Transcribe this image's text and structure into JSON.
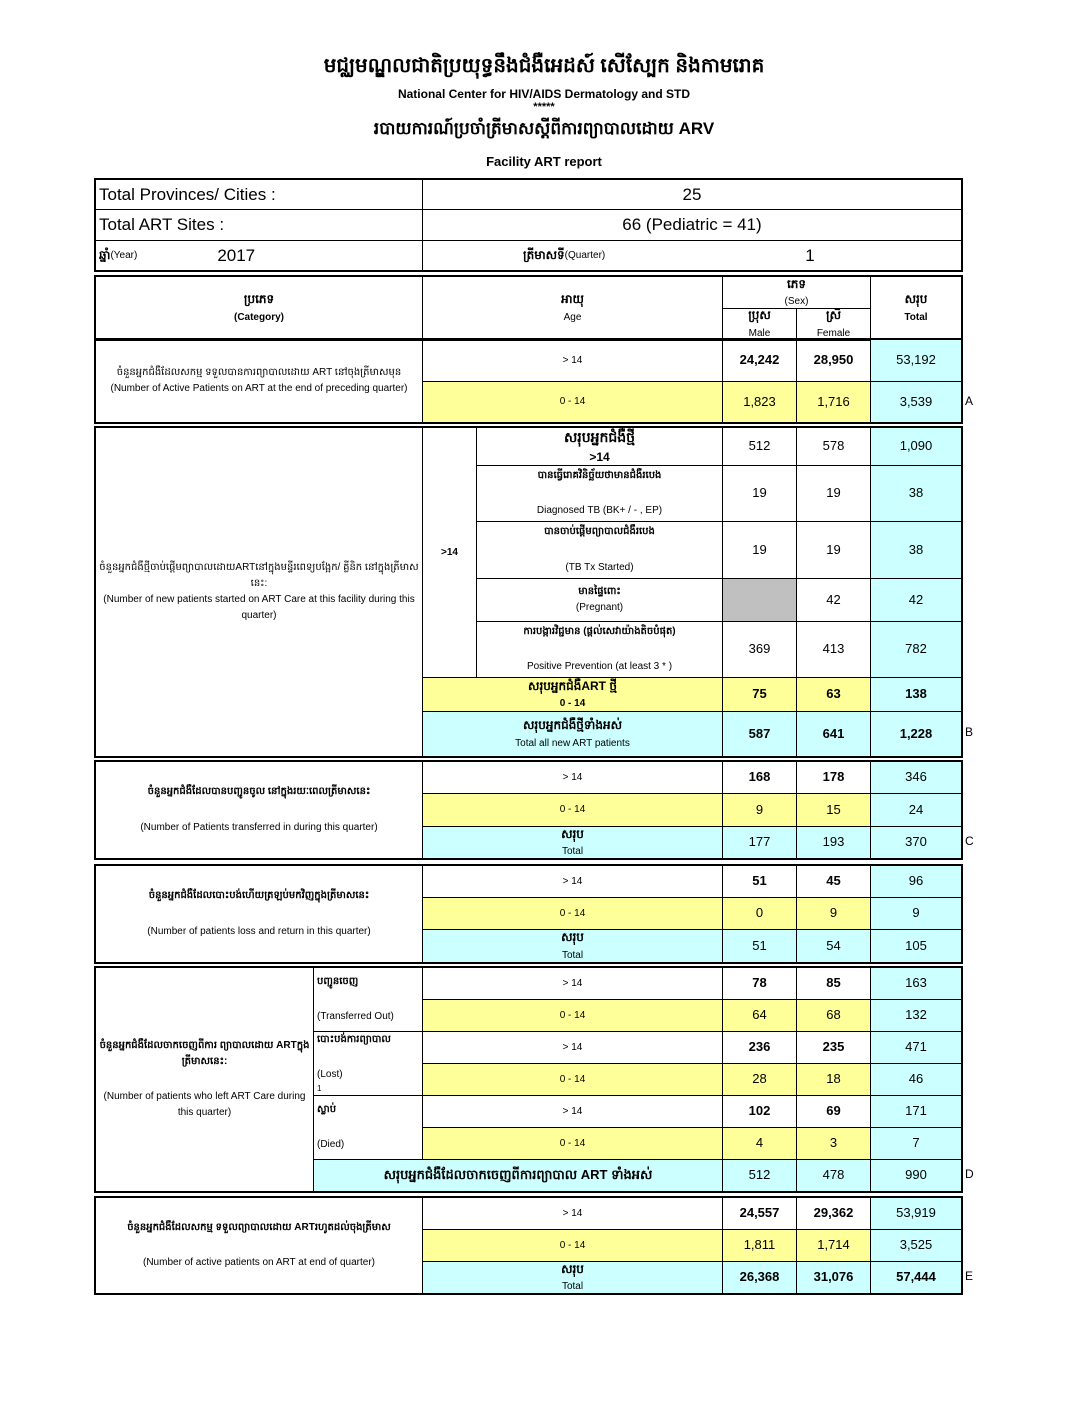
{
  "header": {
    "title_km": "មជ្ឈមណ្ឌលជាតិប្រយុទ្ធនឹងជំងឺអេដស៍ សើស្បែក និងកាមរោគ",
    "title_en": "National Center for HIV/AIDS Dermatology and STD",
    "stars": "*****",
    "subtitle_km": "របាយការណ៍ប្រចាំត្រីមាសស្តីពីការព្យាបាលដោយ ARV",
    "subtitle_en": "Facility ART report"
  },
  "info": {
    "provinces_label": "Total Provinces/ Cities :",
    "provinces_value": "25",
    "sites_label": "Total ART Sites :",
    "sites_value": "66 (Pediatric = 41)",
    "year_label_km": "ឆ្នាំ",
    "year_label_en": "(Year)",
    "year_value": "2017",
    "quarter_label_km": "ត្រីមាសទី",
    "quarter_label_en": "(Quarter)",
    "quarter_value": "1"
  },
  "columns": {
    "category_km": "ប្រភេទ",
    "category_en": "(Category)",
    "age_km": "អាយុ",
    "age_en": "Age",
    "sex_km": "ភេទ",
    "sex_en": "(Sex)",
    "male_km": "ប្រុស",
    "male_en": "Male",
    "female_km": "ស្រី",
    "female_en": "Female",
    "total_km": "សរុប",
    "total_en": "Total"
  },
  "sections": {
    "A": {
      "label_km": "ចំនួនអ្នកជំងឺដែលសកម្ម ទទួលបានការព្យាបាលដោយ ART នៅចុងត្រីមាសមុន",
      "label_en": "(Number of Active Patients on ART at the end of preceding quarter)",
      "letter": "A",
      "rows": [
        {
          "age": "> 14",
          "male": "24,242",
          "female": "28,950",
          "total": "53,192"
        },
        {
          "age": "0 - 14",
          "male": "1,823",
          "female": "1,716",
          "total": "3,539"
        }
      ]
    },
    "B": {
      "label_km": "ចំនួនអ្នកជំងឺថ្មីចាប់ផ្តើមព្យាបាលដោយARTនៅក្នុងមន្ទីរពេទ្យបង្អែក/ គ្លីនិក នៅក្នុងត្រីមាសនេះ:",
      "label_en": "(Number of new patients started on ART Care at this facility during this quarter)",
      "age_group": ">14",
      "letter": "B",
      "rows": [
        {
          "label_km": "សរុបអ្នកជំងឺថ្មី",
          "label_en": ">14",
          "male": "512",
          "female": "578",
          "total": "1,090"
        },
        {
          "label_km": "បានធ្វើរោគវិនិច្ឆ័យថាមានជំងឺរបេង",
          "label_en": "Diagnosed TB (BK+ / - , EP)",
          "male": "19",
          "female": "19",
          "total": "38"
        },
        {
          "label_km": "បានចាប់ផ្តើមព្យាបាលជំងឺរបេង",
          "label_en": "(TB Tx Started)",
          "male": "19",
          "female": "19",
          "total": "38"
        },
        {
          "label_km": "មានផ្ទៃពោះ",
          "label_en": "(Pregnant)",
          "male": "",
          "female": "42",
          "total": "42"
        },
        {
          "label_km": "ការបង្ការវិជ្ជមាន (ផ្តល់សេវាយ៉ាងតិចបំផុត)",
          "label_en": "Positive Prevention (at least 3 * )",
          "male": "369",
          "female": "413",
          "total": "782"
        }
      ],
      "pediatric_total": {
        "label_km": "សរុបអ្នកជំងឺART ថ្មី",
        "label_en": "0 - 14",
        "male": "75",
        "female": "63",
        "total": "138"
      },
      "grand_total": {
        "label_km": "សរុបអ្នកជំងឺថ្មីទាំងអស់",
        "label_en": "Total all new ART patients",
        "male": "587",
        "female": "641",
        "total": "1,228"
      }
    },
    "C": {
      "label_km": "ចំនួនអ្នកជំងឺដែលបានបញ្ជូនចូល នៅក្នុងរយៈពេលត្រីមាសនេះ",
      "label_en": "(Number of Patients transferred in during this quarter)",
      "letter": "C",
      "rows": [
        {
          "age": "> 14",
          "male": "168",
          "female": "178",
          "total": "346"
        },
        {
          "age": "0 - 14",
          "male": "9",
          "female": "15",
          "total": "24"
        },
        {
          "age_km": "សរុប",
          "age": "Total",
          "male": "177",
          "female": "193",
          "total": "370"
        }
      ]
    },
    "D": {
      "label_km": "ចំនួនអ្នកជំងឺដែលបោះបង់ហើយត្រឡប់មកវិញក្នុងត្រីមាសនេះ",
      "label_en": "(Number of patients loss and return in this quarter)",
      "rows": [
        {
          "age": "> 14",
          "male": "51",
          "female": "45",
          "total": "96"
        },
        {
          "age": "0 - 14",
          "male": "0",
          "female": "9",
          "total": "9"
        },
        {
          "age_km": "សរុប",
          "age": "Total",
          "male": "51",
          "female": "54",
          "total": "105"
        }
      ]
    },
    "E": {
      "label_km": "ចំនួនអ្នកជំងឺដែលចាកចេញពីការ ព្យាបាលដោយ ARTក្នុងត្រីមាសនេះ:",
      "label_en": "(Number of patients who left ART Care during this quarter)",
      "letter": "D",
      "groups": [
        {
          "label_km": "បញ្ជូនចេញ",
          "label_en": "(Transferred Out)",
          "note": ""
        },
        {
          "label_km": "បោះបង់ការព្យាបាល",
          "label_en": "(Lost)",
          "note": "1"
        },
        {
          "label_km": "ស្លាប់",
          "label_en": "(Died)",
          "note": ""
        }
      ],
      "rows": [
        {
          "age": "> 14",
          "male": "78",
          "female": "85",
          "total": "163"
        },
        {
          "age": "0 - 14",
          "male": "64",
          "female": "68",
          "total": "132"
        },
        {
          "age": "> 14",
          "male": "236",
          "female": "235",
          "total": "471"
        },
        {
          "age": "0 - 14",
          "male": "28",
          "female": "18",
          "total": "46"
        },
        {
          "age": "> 14",
          "male": "102",
          "female": "69",
          "total": "171"
        },
        {
          "age": "0 - 14",
          "male": "4",
          "female": "3",
          "total": "7"
        }
      ],
      "total": {
        "label_km": "សរុបអ្នកជំងឺដែលចាកចេញពីការព្យាបាល ART ទាំងអស់",
        "male": "512",
        "female": "478",
        "total": "990"
      }
    },
    "F": {
      "label_km": "ចំនួនអ្នកជំងឺដែលសកម្ម ទទួលព្យាបាលដោយ ARTរហូតដល់ចុងត្រីមាស",
      "label_en": "(Number of active patients on ART at end of quarter)",
      "letter": "E",
      "rows": [
        {
          "age": "> 14",
          "male": "24,557",
          "female": "29,362",
          "total": "53,919"
        },
        {
          "age": "0 - 14",
          "male": "1,811",
          "female": "1,714",
          "total": "3,525"
        },
        {
          "age_km": "សរុប",
          "age": "Total",
          "male": "26,368",
          "female": "31,076",
          "total": "57,444"
        }
      ]
    }
  },
  "colors": {
    "yellow": "#ffff99",
    "cyan": "#ccffff",
    "gray": "#c0c0c0"
  }
}
